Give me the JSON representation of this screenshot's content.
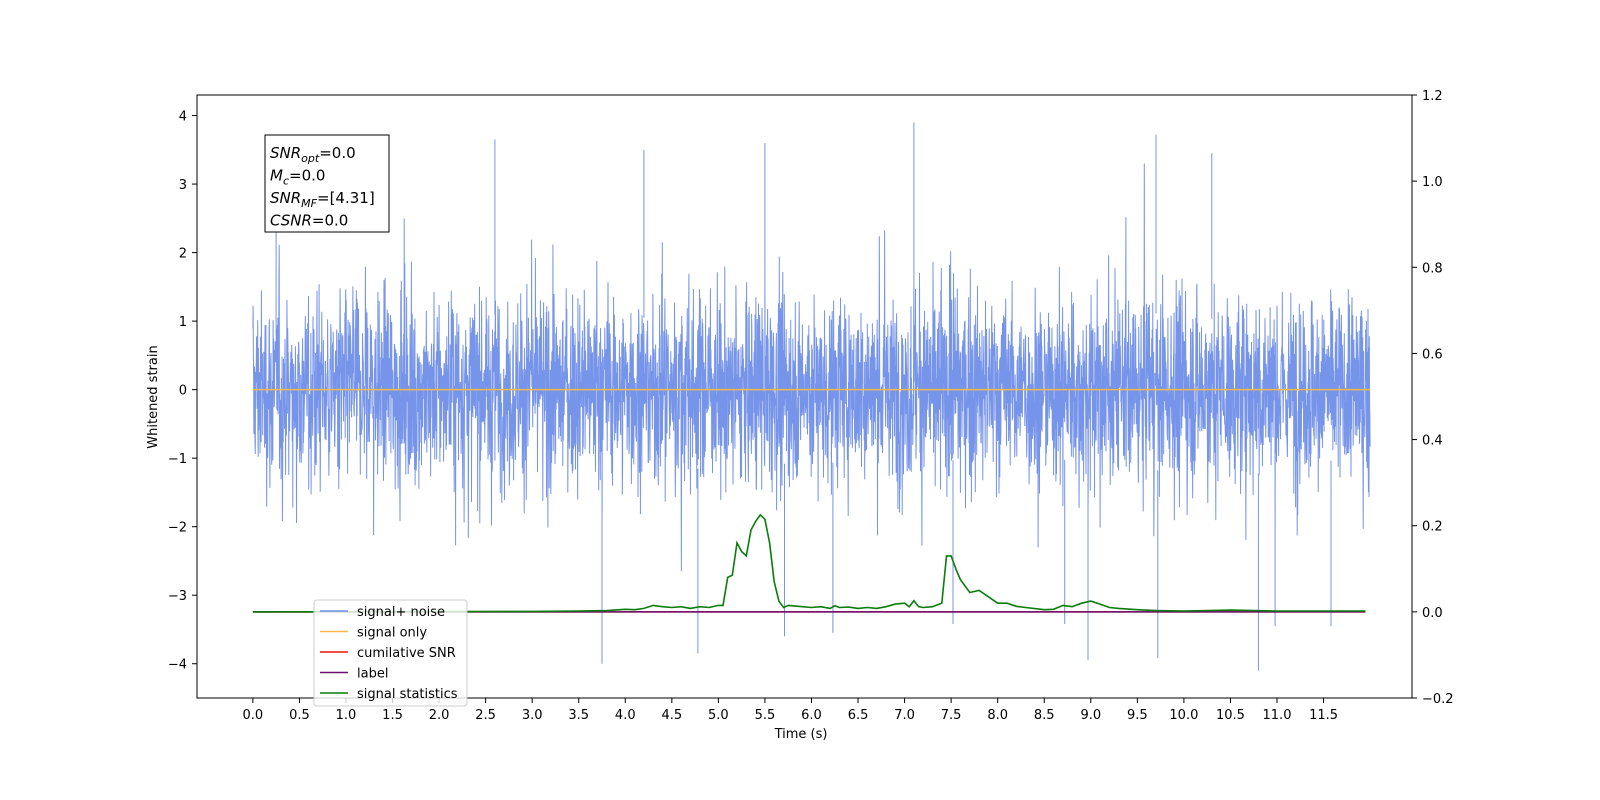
{
  "chart_data": {
    "type": "line",
    "xlabel": "Time (s)",
    "ylabel": "Whitened strain",
    "xlim": [
      -0.6,
      12.45
    ],
    "ylim": [
      -4.5,
      4.3
    ],
    "y2lim": [
      -0.2,
      1.2
    ],
    "x_ticks": [
      "0.0",
      "0.5",
      "1.0",
      "1.5",
      "2.0",
      "2.5",
      "3.0",
      "3.5",
      "4.0",
      "4.5",
      "5.0",
      "5.5",
      "6.0",
      "6.5",
      "7.0",
      "7.5",
      "8.0",
      "8.5",
      "9.0",
      "9.5",
      "10.0",
      "10.5",
      "11.0",
      "11.5"
    ],
    "y_ticks": [
      "4",
      "3",
      "2",
      "1",
      "0",
      "−1",
      "−2",
      "−3",
      "−4"
    ],
    "y2_ticks": [
      "1.2",
      "1.0",
      "0.8",
      "0.6",
      "0.4",
      "0.2",
      "0.0",
      "−0.2"
    ],
    "grid": false,
    "legend_position": "lower-left",
    "annotation": {
      "lines": [
        {
          "sym": "SNR",
          "sub": "opt",
          "rest": "=0.0"
        },
        {
          "sym": "M",
          "sub": "c",
          "rest": "=0.0"
        },
        {
          "sym": "SNR",
          "sub": "MF",
          "rest": "=[4.31]"
        },
        {
          "sym": "CSNR",
          "sub": "",
          "rest": "=0.0"
        }
      ]
    },
    "series": [
      {
        "name": "signal+ noise",
        "color": "#6f8ee8",
        "axis": "left",
        "kind": "noise",
        "x_range": [
          0.0,
          12.0
        ],
        "typical_envelope": [
          -2.0,
          2.6
        ],
        "spikes": [
          {
            "x": 3.75,
            "y": -4.0
          },
          {
            "x": 4.78,
            "y": -3.85
          },
          {
            "x": 5.71,
            "y": -3.6
          },
          {
            "x": 6.23,
            "y": -3.55
          },
          {
            "x": 7.1,
            "y": 3.9
          },
          {
            "x": 7.52,
            "y": -3.42
          },
          {
            "x": 8.72,
            "y": -3.42
          },
          {
            "x": 8.97,
            "y": -3.95
          },
          {
            "x": 9.7,
            "y": 3.72
          },
          {
            "x": 9.72,
            "y": -3.92
          },
          {
            "x": 10.8,
            "y": -4.1
          },
          {
            "x": 10.98,
            "y": -3.45
          },
          {
            "x": 11.58,
            "y": -3.45
          },
          {
            "x": 2.6,
            "y": 3.65
          },
          {
            "x": 5.5,
            "y": 3.6
          },
          {
            "x": 10.3,
            "y": 3.45
          },
          {
            "x": 4.2,
            "y": 3.5
          },
          {
            "x": 0.25,
            "y": 2.6
          }
        ]
      },
      {
        "name": "signal only",
        "color": "#f5b94a",
        "axis": "left",
        "x": [
          0.0,
          12.0
        ],
        "y": [
          0.0,
          0.0
        ]
      },
      {
        "name": "cumilative SNR",
        "color": "#e8160c",
        "axis": "right",
        "x": [
          0.0,
          11.95
        ],
        "y": [
          0.0,
          0.0
        ]
      },
      {
        "name": "label",
        "color": "#6a0f6e",
        "axis": "right",
        "x": [
          0.0,
          11.95
        ],
        "y": [
          0.0,
          0.0
        ]
      },
      {
        "name": "signal statistics",
        "color": "#0a7d0a",
        "axis": "right",
        "x": [
          0.0,
          3.0,
          3.5,
          3.8,
          4.0,
          4.1,
          4.2,
          4.3,
          4.4,
          4.5,
          4.6,
          4.7,
          4.8,
          4.9,
          5.0,
          5.05,
          5.1,
          5.15,
          5.2,
          5.25,
          5.3,
          5.35,
          5.4,
          5.45,
          5.5,
          5.55,
          5.6,
          5.65,
          5.7,
          5.75,
          5.8,
          5.9,
          6.0,
          6.1,
          6.2,
          6.25,
          6.3,
          6.4,
          6.5,
          6.6,
          6.7,
          6.8,
          6.9,
          7.0,
          7.05,
          7.1,
          7.15,
          7.2,
          7.3,
          7.4,
          7.45,
          7.5,
          7.55,
          7.6,
          7.7,
          7.8,
          7.9,
          8.0,
          8.1,
          8.2,
          8.3,
          8.5,
          8.6,
          8.7,
          8.8,
          8.9,
          9.0,
          9.1,
          9.2,
          9.3,
          9.5,
          9.7,
          10.0,
          10.5,
          11.0,
          11.95
        ],
        "y": [
          0.0,
          0.001,
          0.002,
          0.003,
          0.006,
          0.005,
          0.008,
          0.015,
          0.012,
          0.01,
          0.012,
          0.008,
          0.012,
          0.01,
          0.015,
          0.015,
          0.08,
          0.085,
          0.16,
          0.14,
          0.13,
          0.19,
          0.21,
          0.225,
          0.215,
          0.16,
          0.07,
          0.025,
          0.01,
          0.015,
          0.014,
          0.012,
          0.01,
          0.012,
          0.008,
          0.014,
          0.01,
          0.011,
          0.008,
          0.01,
          0.008,
          0.012,
          0.018,
          0.02,
          0.012,
          0.026,
          0.012,
          0.01,
          0.012,
          0.02,
          0.13,
          0.13,
          0.1,
          0.075,
          0.045,
          0.05,
          0.035,
          0.02,
          0.02,
          0.013,
          0.01,
          0.005,
          0.006,
          0.015,
          0.012,
          0.02,
          0.025,
          0.018,
          0.01,
          0.008,
          0.005,
          0.003,
          0.002,
          0.004,
          0.002,
          0.002
        ]
      }
    ]
  }
}
